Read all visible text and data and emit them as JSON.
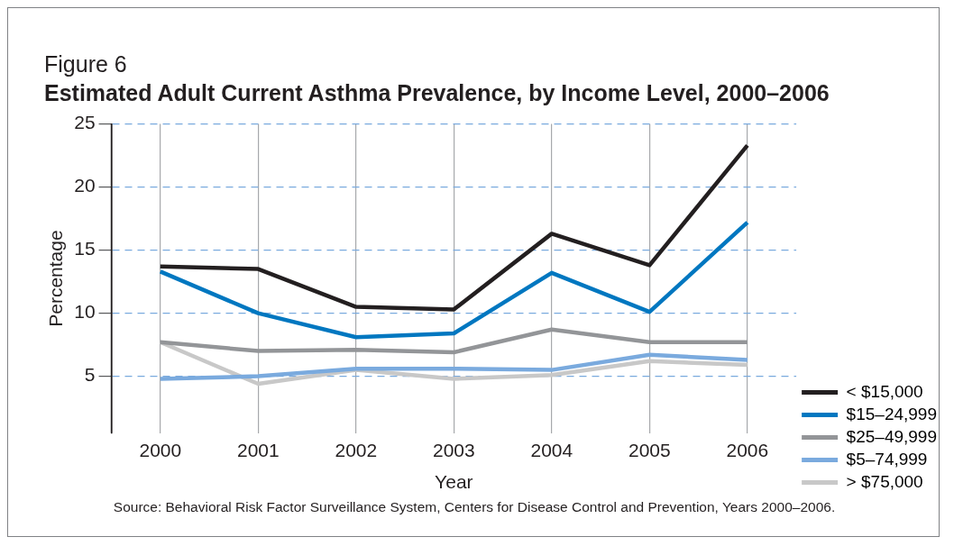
{
  "chart_data": {
    "type": "line",
    "title": "Figure 6",
    "subtitle": "Estimated Adult Current Asthma Prevalence, by Income Level, 2000–2006",
    "xlabel": "Year",
    "ylabel": "Percentage",
    "categories": [
      "2000",
      "2001",
      "2002",
      "2003",
      "2004",
      "2005",
      "2006"
    ],
    "series": [
      {
        "name": "< $15,000",
        "color": "#231f20",
        "values": [
          13.7,
          13.5,
          10.5,
          10.3,
          16.3,
          13.8,
          23.3
        ]
      },
      {
        "name": "$15–24,999",
        "color": "#0077c0",
        "values": [
          13.3,
          10.0,
          8.1,
          8.4,
          13.2,
          10.1,
          17.2
        ]
      },
      {
        "name": "$25–49,999",
        "color": "#939598",
        "values": [
          7.7,
          7.0,
          7.1,
          6.9,
          8.7,
          7.7,
          7.7
        ]
      },
      {
        "name": "$5–74,999",
        "color": "#7aaade",
        "values": [
          4.8,
          5.0,
          5.6,
          5.6,
          5.5,
          6.7,
          6.3
        ]
      },
      {
        "name": "> $75,000",
        "color": "#c8c8c8",
        "values": [
          7.7,
          4.4,
          5.5,
          4.8,
          5.1,
          6.2,
          5.9
        ]
      }
    ],
    "ylim": [
      0.5,
      25
    ],
    "yticks": [
      5,
      10,
      15,
      20,
      25
    ],
    "grid": true,
    "legend": "right",
    "marker": "none",
    "line_style": "solid",
    "annotations": [
      "Source: Behavioral Risk Factor Surveillance System, Centers for Disease Control and Prevention, Years 2000–2006."
    ]
  }
}
